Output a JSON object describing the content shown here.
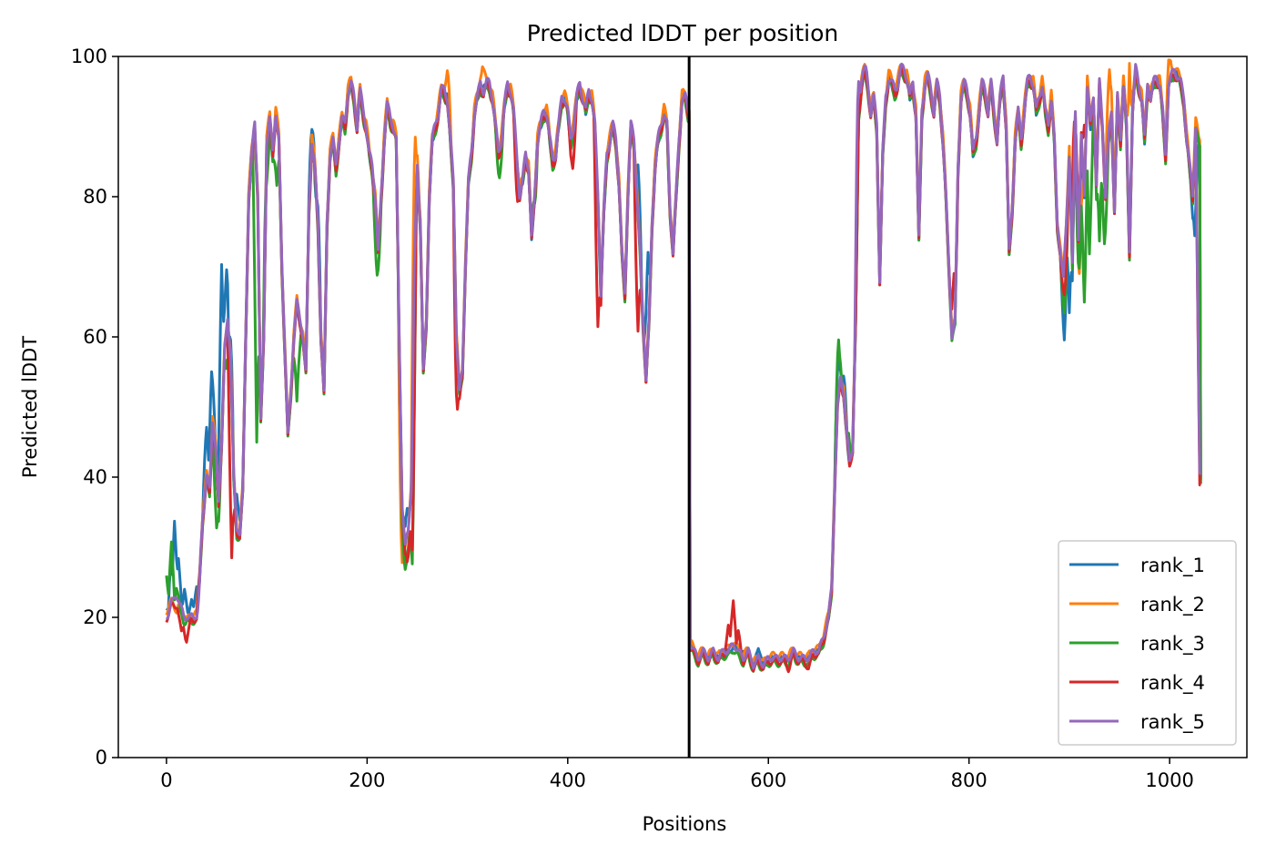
{
  "chart_data": {
    "type": "line",
    "title": "Predicted lDDT per position",
    "xlabel": "Positions",
    "ylabel": "Predicted lDDT",
    "xlim": [
      -48,
      1077
    ],
    "ylim": [
      0,
      100
    ],
    "xticks": [
      0,
      200,
      400,
      600,
      800,
      1000
    ],
    "yticks": [
      0,
      20,
      40,
      60,
      80,
      100
    ],
    "grid": false,
    "legend_position": "lower-right",
    "vline_x": 521,
    "vline_color": "#000000",
    "series": [
      {
        "name": "rank_1",
        "color": "#1f77b4",
        "offset": 0.0,
        "overrides": [
          [
            0,
            21
          ],
          [
            5,
            28
          ],
          [
            8,
            34
          ],
          [
            12,
            28
          ],
          [
            18,
            24
          ],
          [
            25,
            23
          ],
          [
            30,
            24
          ],
          [
            40,
            47
          ],
          [
            45,
            55
          ],
          [
            55,
            70
          ],
          [
            60,
            70
          ],
          [
            63,
            60
          ],
          [
            70,
            38
          ],
          [
            145,
            89
          ],
          [
            150,
            80
          ],
          [
            235,
            34
          ],
          [
            240,
            36
          ],
          [
            470,
            84
          ],
          [
            480,
            72
          ],
          [
            575,
            15
          ],
          [
            590,
            16
          ],
          [
            670,
            57
          ],
          [
            675,
            54
          ],
          [
            895,
            60
          ],
          [
            900,
            63
          ],
          [
            1025,
            74
          ]
        ]
      },
      {
        "name": "rank_2",
        "color": "#ff7f0e",
        "offset": 0.6,
        "overrides": [
          [
            0,
            20
          ],
          [
            10,
            20
          ],
          [
            235,
            27
          ],
          [
            248,
            88
          ],
          [
            280,
            97
          ],
          [
            315,
            98
          ],
          [
            910,
            68
          ],
          [
            940,
            98
          ],
          [
            960,
            99
          ],
          [
            1000,
            99
          ]
        ]
      },
      {
        "name": "rank_3",
        "color": "#2ca02c",
        "offset": -0.6,
        "overrides": [
          [
            0,
            27
          ],
          [
            5,
            31
          ],
          [
            10,
            25
          ],
          [
            20,
            20
          ],
          [
            50,
            33
          ],
          [
            60,
            56
          ],
          [
            90,
            46
          ],
          [
            100,
            83
          ],
          [
            110,
            82
          ],
          [
            130,
            51
          ],
          [
            210,
            69
          ],
          [
            238,
            27
          ],
          [
            245,
            28
          ],
          [
            332,
            84
          ],
          [
            366,
            80
          ],
          [
            670,
            60
          ],
          [
            680,
            47
          ],
          [
            895,
            64
          ],
          [
            910,
            70
          ],
          [
            915,
            66
          ],
          [
            920,
            72
          ],
          [
            930,
            74
          ],
          [
            935,
            74
          ]
        ]
      },
      {
        "name": "rank_4",
        "color": "#d62728",
        "offset": -0.3,
        "overrides": [
          [
            15,
            18
          ],
          [
            20,
            17
          ],
          [
            65,
            29
          ],
          [
            240,
            28
          ],
          [
            245,
            30
          ],
          [
            290,
            50
          ],
          [
            350,
            80
          ],
          [
            405,
            85
          ],
          [
            430,
            62
          ],
          [
            470,
            61
          ],
          [
            565,
            23
          ],
          [
            560,
            19
          ],
          [
            570,
            18
          ],
          [
            620,
            13
          ],
          [
            640,
            13
          ],
          [
            785,
            69
          ],
          [
            895,
            66
          ],
          [
            905,
            91
          ],
          [
            915,
            91
          ],
          [
            1030,
            39
          ]
        ]
      },
      {
        "name": "rank_5",
        "color": "#9467bd",
        "offset": 0.2,
        "overrides": [
          [
            0,
            20
          ],
          [
            10,
            23
          ],
          [
            20,
            20
          ],
          [
            30,
            20
          ],
          [
            690,
            96
          ],
          [
            695,
            98
          ],
          [
            1030,
            40
          ]
        ]
      }
    ],
    "base_profile": [
      [
        0,
        20
      ],
      [
        5,
        22
      ],
      [
        10,
        22
      ],
      [
        15,
        21
      ],
      [
        20,
        19
      ],
      [
        25,
        20
      ],
      [
        30,
        20
      ],
      [
        33,
        26
      ],
      [
        36,
        34
      ],
      [
        40,
        40
      ],
      [
        43,
        38
      ],
      [
        46,
        48
      ],
      [
        49,
        44
      ],
      [
        52,
        36
      ],
      [
        55,
        45
      ],
      [
        58,
        58
      ],
      [
        61,
        62
      ],
      [
        64,
        57
      ],
      [
        67,
        40
      ],
      [
        70,
        32
      ],
      [
        73,
        32
      ],
      [
        76,
        38
      ],
      [
        79,
        60
      ],
      [
        82,
        80
      ],
      [
        85,
        86
      ],
      [
        88,
        90
      ],
      [
        91,
        80
      ],
      [
        94,
        48
      ],
      [
        97,
        60
      ],
      [
        100,
        88
      ],
      [
        103,
        91
      ],
      [
        106,
        86
      ],
      [
        109,
        92
      ],
      [
        112,
        88
      ],
      [
        115,
        70
      ],
      [
        118,
        58
      ],
      [
        121,
        46
      ],
      [
        124,
        52
      ],
      [
        127,
        60
      ],
      [
        130,
        65
      ],
      [
        133,
        62
      ],
      [
        136,
        60
      ],
      [
        139,
        55
      ],
      [
        142,
        78
      ],
      [
        145,
        88
      ],
      [
        148,
        84
      ],
      [
        151,
        76
      ],
      [
        154,
        60
      ],
      [
        157,
        52
      ],
      [
        160,
        76
      ],
      [
        163,
        86
      ],
      [
        166,
        88
      ],
      [
        169,
        84
      ],
      [
        172,
        88
      ],
      [
        175,
        91
      ],
      [
        178,
        90
      ],
      [
        181,
        95
      ],
      [
        184,
        96
      ],
      [
        187,
        94
      ],
      [
        190,
        90
      ],
      [
        193,
        95
      ],
      [
        196,
        92
      ],
      [
        199,
        90
      ],
      [
        202,
        86
      ],
      [
        205,
        84
      ],
      [
        208,
        80
      ],
      [
        211,
        72
      ],
      [
        214,
        80
      ],
      [
        217,
        88
      ],
      [
        220,
        93
      ],
      [
        223,
        91
      ],
      [
        226,
        90
      ],
      [
        229,
        88
      ],
      [
        232,
        60
      ],
      [
        235,
        36
      ],
      [
        238,
        30
      ],
      [
        241,
        32
      ],
      [
        244,
        38
      ],
      [
        247,
        70
      ],
      [
        250,
        84
      ],
      [
        253,
        76
      ],
      [
        256,
        55
      ],
      [
        259,
        62
      ],
      [
        262,
        80
      ],
      [
        265,
        88
      ],
      [
        268,
        90
      ],
      [
        271,
        92
      ],
      [
        274,
        95
      ],
      [
        277,
        95
      ],
      [
        280,
        94
      ],
      [
        283,
        88
      ],
      [
        286,
        82
      ],
      [
        289,
        60
      ],
      [
        292,
        52
      ],
      [
        295,
        55
      ],
      [
        298,
        70
      ],
      [
        301,
        82
      ],
      [
        304,
        86
      ],
      [
        307,
        92
      ],
      [
        310,
        94
      ],
      [
        313,
        96
      ],
      [
        316,
        95
      ],
      [
        319,
        96
      ],
      [
        322,
        96
      ],
      [
        325,
        94
      ],
      [
        328,
        90
      ],
      [
        331,
        86
      ],
      [
        334,
        88
      ],
      [
        337,
        93
      ],
      [
        340,
        96
      ],
      [
        343,
        95
      ],
      [
        346,
        92
      ],
      [
        349,
        86
      ],
      [
        352,
        80
      ],
      [
        355,
        82
      ],
      [
        358,
        86
      ],
      [
        361,
        84
      ],
      [
        364,
        74
      ],
      [
        367,
        80
      ],
      [
        370,
        88
      ],
      [
        373,
        90
      ],
      [
        376,
        92
      ],
      [
        379,
        92
      ],
      [
        382,
        88
      ],
      [
        385,
        85
      ],
      [
        388,
        86
      ],
      [
        391,
        90
      ],
      [
        394,
        94
      ],
      [
        397,
        94
      ],
      [
        400,
        92
      ],
      [
        403,
        88
      ],
      [
        406,
        90
      ],
      [
        409,
        94
      ],
      [
        412,
        96
      ],
      [
        415,
        94
      ],
      [
        418,
        92
      ],
      [
        421,
        95
      ],
      [
        424,
        94
      ],
      [
        427,
        90
      ],
      [
        430,
        80
      ],
      [
        433,
        66
      ],
      [
        436,
        78
      ],
      [
        439,
        86
      ],
      [
        442,
        88
      ],
      [
        445,
        90
      ],
      [
        448,
        88
      ],
      [
        451,
        82
      ],
      [
        454,
        72
      ],
      [
        457,
        66
      ],
      [
        460,
        80
      ],
      [
        463,
        90
      ],
      [
        466,
        88
      ],
      [
        469,
        80
      ],
      [
        472,
        72
      ],
      [
        475,
        62
      ],
      [
        478,
        54
      ],
      [
        481,
        62
      ],
      [
        484,
        76
      ],
      [
        487,
        84
      ],
      [
        490,
        88
      ],
      [
        493,
        90
      ],
      [
        496,
        92
      ],
      [
        499,
        90
      ],
      [
        502,
        78
      ],
      [
        505,
        72
      ],
      [
        508,
        80
      ],
      [
        511,
        88
      ],
      [
        514,
        94
      ],
      [
        517,
        94
      ],
      [
        520,
        92
      ],
      [
        522,
        16
      ],
      [
        526,
        15
      ],
      [
        530,
        14
      ],
      [
        535,
        15
      ],
      [
        540,
        14
      ],
      [
        545,
        15
      ],
      [
        550,
        14
      ],
      [
        555,
        15
      ],
      [
        560,
        15
      ],
      [
        565,
        16
      ],
      [
        570,
        15
      ],
      [
        575,
        14
      ],
      [
        580,
        15
      ],
      [
        585,
        13
      ],
      [
        590,
        14
      ],
      [
        595,
        13
      ],
      [
        600,
        14
      ],
      [
        605,
        14
      ],
      [
        610,
        14
      ],
      [
        615,
        14
      ],
      [
        620,
        14
      ],
      [
        625,
        15
      ],
      [
        630,
        14
      ],
      [
        635,
        14
      ],
      [
        640,
        14
      ],
      [
        645,
        15
      ],
      [
        650,
        15
      ],
      [
        655,
        17
      ],
      [
        660,
        20
      ],
      [
        663,
        24
      ],
      [
        666,
        38
      ],
      [
        669,
        50
      ],
      [
        672,
        54
      ],
      [
        675,
        52
      ],
      [
        678,
        46
      ],
      [
        681,
        42
      ],
      [
        684,
        44
      ],
      [
        687,
        62
      ],
      [
        690,
        92
      ],
      [
        693,
        96
      ],
      [
        696,
        98
      ],
      [
        699,
        96
      ],
      [
        702,
        92
      ],
      [
        705,
        94
      ],
      [
        708,
        90
      ],
      [
        711,
        68
      ],
      [
        714,
        86
      ],
      [
        717,
        94
      ],
      [
        720,
        97
      ],
      [
        723,
        96
      ],
      [
        726,
        95
      ],
      [
        729,
        96
      ],
      [
        732,
        98
      ],
      [
        735,
        98
      ],
      [
        738,
        97
      ],
      [
        741,
        94
      ],
      [
        744,
        96
      ],
      [
        747,
        92
      ],
      [
        750,
        74
      ],
      [
        753,
        92
      ],
      [
        756,
        96
      ],
      [
        759,
        97
      ],
      [
        762,
        95
      ],
      [
        765,
        92
      ],
      [
        768,
        96
      ],
      [
        771,
        94
      ],
      [
        774,
        88
      ],
      [
        777,
        80
      ],
      [
        780,
        70
      ],
      [
        783,
        60
      ],
      [
        786,
        62
      ],
      [
        789,
        84
      ],
      [
        792,
        94
      ],
      [
        795,
        96
      ],
      [
        798,
        95
      ],
      [
        801,
        92
      ],
      [
        804,
        86
      ],
      [
        807,
        88
      ],
      [
        810,
        92
      ],
      [
        813,
        96
      ],
      [
        816,
        95
      ],
      [
        819,
        92
      ],
      [
        822,
        96
      ],
      [
        825,
        92
      ],
      [
        828,
        88
      ],
      [
        831,
        94
      ],
      [
        834,
        97
      ],
      [
        837,
        90
      ],
      [
        840,
        72
      ],
      [
        843,
        78
      ],
      [
        846,
        88
      ],
      [
        849,
        92
      ],
      [
        852,
        88
      ],
      [
        855,
        92
      ],
      [
        858,
        96
      ],
      [
        861,
        97
      ],
      [
        864,
        96
      ],
      [
        867,
        92
      ],
      [
        870,
        94
      ],
      [
        873,
        96
      ],
      [
        876,
        92
      ],
      [
        879,
        90
      ],
      [
        882,
        94
      ],
      [
        885,
        88
      ],
      [
        888,
        76
      ],
      [
        891,
        72
      ],
      [
        894,
        68
      ],
      [
        897,
        76
      ],
      [
        900,
        86
      ],
      [
        903,
        70
      ],
      [
        906,
        92
      ],
      [
        909,
        74
      ],
      [
        912,
        88
      ],
      [
        915,
        80
      ],
      [
        918,
        96
      ],
      [
        921,
        90
      ],
      [
        924,
        94
      ],
      [
        927,
        82
      ],
      [
        930,
        96
      ],
      [
        933,
        90
      ],
      [
        936,
        80
      ],
      [
        939,
        88
      ],
      [
        942,
        92
      ],
      [
        945,
        78
      ],
      [
        948,
        94
      ],
      [
        951,
        88
      ],
      [
        954,
        96
      ],
      [
        957,
        90
      ],
      [
        960,
        72
      ],
      [
        963,
        92
      ],
      [
        966,
        98
      ],
      [
        969,
        96
      ],
      [
        972,
        94
      ],
      [
        975,
        88
      ],
      [
        978,
        96
      ],
      [
        981,
        94
      ],
      [
        984,
        96
      ],
      [
        987,
        97
      ],
      [
        990,
        96
      ],
      [
        993,
        92
      ],
      [
        996,
        86
      ],
      [
        999,
        96
      ],
      [
        1002,
        97
      ],
      [
        1005,
        98
      ],
      [
        1008,
        97
      ],
      [
        1011,
        96
      ],
      [
        1014,
        94
      ],
      [
        1017,
        88
      ],
      [
        1020,
        84
      ],
      [
        1023,
        80
      ],
      [
        1026,
        90
      ],
      [
        1029,
        88
      ],
      [
        1031,
        40
      ]
    ]
  }
}
